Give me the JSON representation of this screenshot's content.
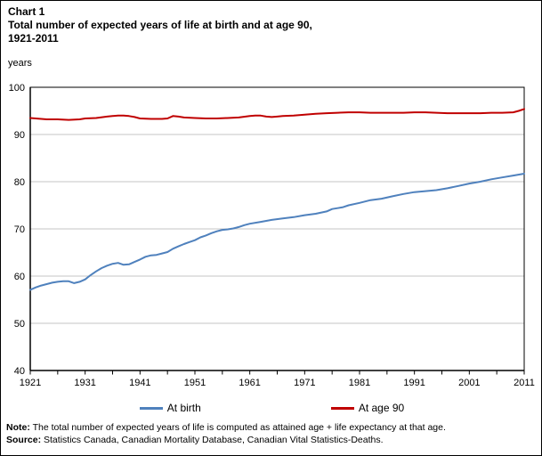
{
  "title": {
    "line1": "Chart 1",
    "line2": "Total number of expected years of life at birth and at age 90,",
    "line3": "1921-2011"
  },
  "y_axis_unit": "years",
  "note_label": "Note:",
  "note_text": " The total number of expected years of life is computed as attained age + life expectancy  at that age.",
  "source_label": "Source:",
  "source_text": " Statistics Canada, Canadian Mortality Database, Canadian Vital Statistics-Deaths.",
  "colors": {
    "at_birth": "#4F81BD",
    "at_age_90": "#C00000",
    "gridline": "#C6C6C6",
    "axis": "#000000"
  },
  "chart_data": {
    "type": "line",
    "title": "Total number of expected years of life at birth and at age 90, 1921-2011",
    "xlabel": "",
    "ylabel": "years",
    "xlim": [
      1921,
      2011
    ],
    "ylim": [
      40,
      100
    ],
    "y_ticks": [
      40,
      50,
      60,
      70,
      80,
      90,
      100
    ],
    "x_ticks": [
      1921,
      1931,
      1941,
      1951,
      1961,
      1971,
      1981,
      1991,
      2001,
      2011
    ],
    "x_minor_tick_interval": 5,
    "grid": "horizontal",
    "legend_position": "bottom",
    "series": [
      {
        "name": "At birth",
        "color": "#4F81BD",
        "points": [
          [
            1921,
            57.1
          ],
          [
            1922,
            57.6
          ],
          [
            1923,
            58.0
          ],
          [
            1924,
            58.3
          ],
          [
            1925,
            58.6
          ],
          [
            1926,
            58.8
          ],
          [
            1927,
            58.9
          ],
          [
            1928,
            58.9
          ],
          [
            1929,
            58.5
          ],
          [
            1930,
            58.8
          ],
          [
            1931,
            59.3
          ],
          [
            1932,
            60.2
          ],
          [
            1933,
            61.0
          ],
          [
            1934,
            61.7
          ],
          [
            1935,
            62.2
          ],
          [
            1936,
            62.6
          ],
          [
            1937,
            62.8
          ],
          [
            1938,
            62.4
          ],
          [
            1939,
            62.5
          ],
          [
            1940,
            63.0
          ],
          [
            1941,
            63.5
          ],
          [
            1942,
            64.1
          ],
          [
            1943,
            64.4
          ],
          [
            1944,
            64.5
          ],
          [
            1945,
            64.8
          ],
          [
            1946,
            65.1
          ],
          [
            1947,
            65.8
          ],
          [
            1948,
            66.3
          ],
          [
            1949,
            66.8
          ],
          [
            1950,
            67.2
          ],
          [
            1951,
            67.6
          ],
          [
            1952,
            68.2
          ],
          [
            1953,
            68.6
          ],
          [
            1954,
            69.1
          ],
          [
            1955,
            69.5
          ],
          [
            1956,
            69.8
          ],
          [
            1957,
            69.9
          ],
          [
            1958,
            70.1
          ],
          [
            1959,
            70.4
          ],
          [
            1960,
            70.8
          ],
          [
            1961,
            71.1
          ],
          [
            1963,
            71.5
          ],
          [
            1965,
            71.9
          ],
          [
            1967,
            72.2
          ],
          [
            1969,
            72.5
          ],
          [
            1971,
            72.9
          ],
          [
            1973,
            73.2
          ],
          [
            1975,
            73.7
          ],
          [
            1976,
            74.2
          ],
          [
            1977,
            74.4
          ],
          [
            1978,
            74.6
          ],
          [
            1979,
            75.0
          ],
          [
            1981,
            75.5
          ],
          [
            1983,
            76.1
          ],
          [
            1985,
            76.4
          ],
          [
            1987,
            76.9
          ],
          [
            1989,
            77.4
          ],
          [
            1991,
            77.8
          ],
          [
            1993,
            78.0
          ],
          [
            1995,
            78.2
          ],
          [
            1997,
            78.6
          ],
          [
            1999,
            79.1
          ],
          [
            2001,
            79.6
          ],
          [
            2003,
            80.0
          ],
          [
            2005,
            80.5
          ],
          [
            2007,
            80.9
          ],
          [
            2009,
            81.3
          ],
          [
            2011,
            81.7
          ]
        ]
      },
      {
        "name": "At age 90",
        "color": "#C00000",
        "points": [
          [
            1921,
            93.5
          ],
          [
            1922,
            93.4
          ],
          [
            1924,
            93.2
          ],
          [
            1926,
            93.2
          ],
          [
            1928,
            93.1
          ],
          [
            1930,
            93.2
          ],
          [
            1931,
            93.4
          ],
          [
            1933,
            93.5
          ],
          [
            1935,
            93.8
          ],
          [
            1936,
            93.9
          ],
          [
            1937,
            94.0
          ],
          [
            1938,
            94.0
          ],
          [
            1939,
            93.9
          ],
          [
            1940,
            93.7
          ],
          [
            1941,
            93.4
          ],
          [
            1943,
            93.3
          ],
          [
            1945,
            93.3
          ],
          [
            1946,
            93.4
          ],
          [
            1947,
            93.9
          ],
          [
            1948,
            93.8
          ],
          [
            1949,
            93.6
          ],
          [
            1951,
            93.5
          ],
          [
            1953,
            93.4
          ],
          [
            1955,
            93.4
          ],
          [
            1957,
            93.5
          ],
          [
            1959,
            93.6
          ],
          [
            1961,
            93.9
          ],
          [
            1962,
            94.0
          ],
          [
            1963,
            94.0
          ],
          [
            1964,
            93.8
          ],
          [
            1965,
            93.7
          ],
          [
            1966,
            93.8
          ],
          [
            1967,
            93.9
          ],
          [
            1969,
            94.0
          ],
          [
            1971,
            94.2
          ],
          [
            1973,
            94.4
          ],
          [
            1975,
            94.5
          ],
          [
            1977,
            94.6
          ],
          [
            1979,
            94.7
          ],
          [
            1981,
            94.7
          ],
          [
            1983,
            94.6
          ],
          [
            1985,
            94.6
          ],
          [
            1987,
            94.6
          ],
          [
            1989,
            94.6
          ],
          [
            1991,
            94.7
          ],
          [
            1993,
            94.7
          ],
          [
            1995,
            94.6
          ],
          [
            1997,
            94.5
          ],
          [
            1999,
            94.5
          ],
          [
            2001,
            94.5
          ],
          [
            2003,
            94.5
          ],
          [
            2005,
            94.6
          ],
          [
            2007,
            94.6
          ],
          [
            2009,
            94.7
          ],
          [
            2010,
            95.0
          ],
          [
            2011,
            95.4
          ]
        ]
      }
    ]
  }
}
